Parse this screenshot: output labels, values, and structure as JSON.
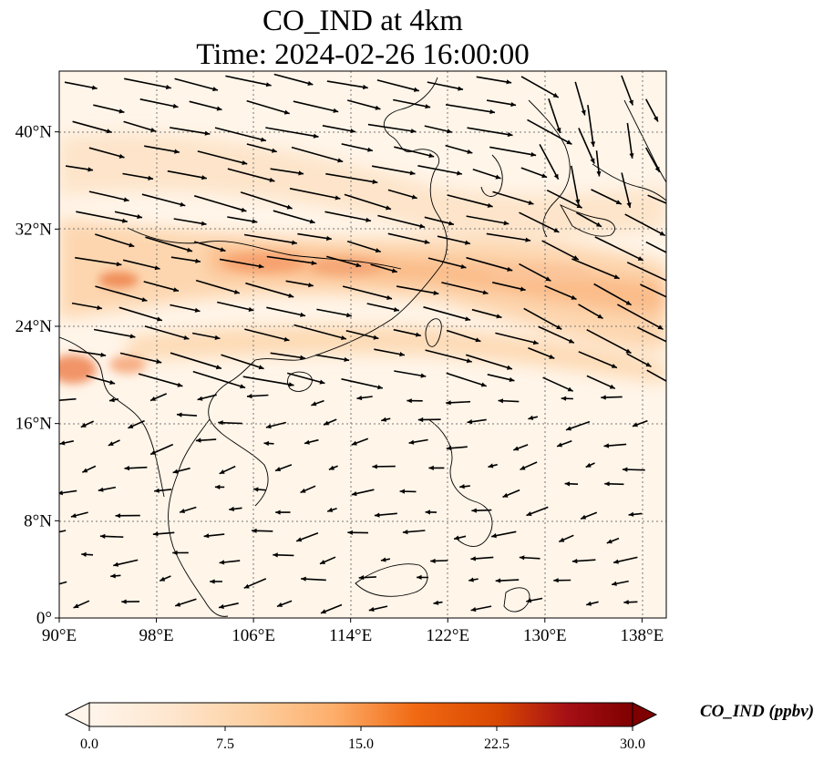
{
  "title": {
    "line1": "CO_IND at 4km",
    "line2": "Time: 2024-02-26 16:00:00"
  },
  "map": {
    "lon_range": [
      90,
      140
    ],
    "lat_range": [
      0,
      45
    ],
    "lon_ticks": [
      {
        "value": 90,
        "label": "90°E"
      },
      {
        "value": 98,
        "label": "98°E"
      },
      {
        "value": 106,
        "label": "106°E"
      },
      {
        "value": 114,
        "label": "114°E"
      },
      {
        "value": 122,
        "label": "122°E"
      },
      {
        "value": 130,
        "label": "130°E"
      },
      {
        "value": 138,
        "label": "138°E"
      }
    ],
    "lat_ticks": [
      {
        "value": 0,
        "label": "0°"
      },
      {
        "value": 8,
        "label": "8°N"
      },
      {
        "value": 16,
        "label": "16°N"
      },
      {
        "value": 24,
        "label": "24°N"
      },
      {
        "value": 32,
        "label": "32°N"
      },
      {
        "value": 40,
        "label": "40°N"
      }
    ],
    "gridlines": true,
    "colors": {
      "background_field": "#fff5e9",
      "coastline": "#000000",
      "wind_vectors": "#000000",
      "grid": "#777777"
    }
  },
  "colorbar": {
    "label": "CO_IND (ppbv)",
    "min": 0,
    "max": 30,
    "ticks": [
      {
        "value": 0,
        "label": "0.0"
      },
      {
        "value": 7.5,
        "label": "7.5"
      },
      {
        "value": 15,
        "label": "15.0"
      },
      {
        "value": 22.5,
        "label": "22.5"
      },
      {
        "value": 30,
        "label": "30.0"
      }
    ],
    "colormap": [
      "#fff5eb",
      "#fee6ce",
      "#fdd0a2",
      "#fdae6b",
      "#f16913",
      "#d94801",
      "#a50f15",
      "#7f0000"
    ],
    "extend": "both"
  }
}
